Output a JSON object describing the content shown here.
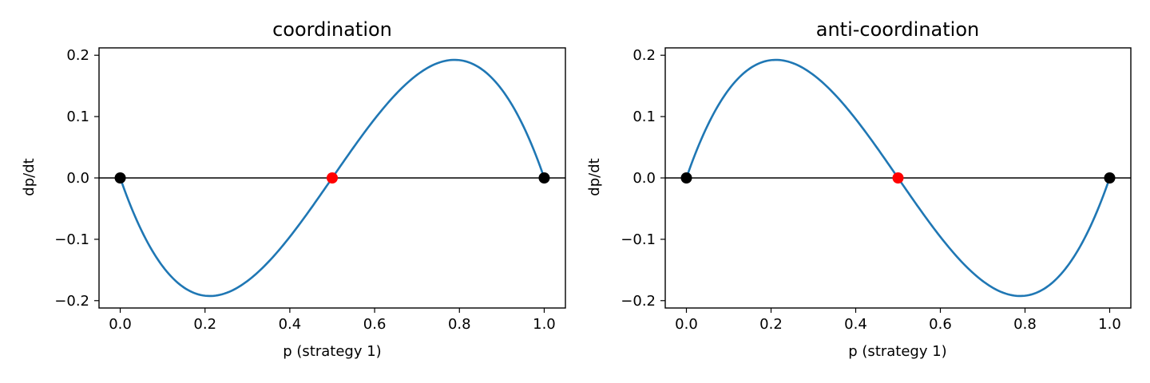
{
  "chart_data": [
    {
      "type": "line",
      "title": "coordination",
      "xlabel": "p (strategy 1)",
      "ylabel": "dp/dt",
      "xlim": [
        -0.05,
        1.05
      ],
      "ylim": [
        -0.212,
        0.212
      ],
      "xticks": [
        0.0,
        0.2,
        0.4,
        0.6,
        0.8,
        1.0
      ],
      "xtick_labels": [
        "0.0",
        "0.2",
        "0.4",
        "0.6",
        "0.8",
        "1.0"
      ],
      "yticks": [
        -0.2,
        -0.1,
        0.0,
        0.1,
        0.2
      ],
      "ytick_labels": [
        "−0.2",
        "−0.1",
        "0.0",
        "0.1",
        "0.2"
      ],
      "curve": {
        "formula": "dp/dt = 2 p (1 - p) (2p - 1)",
        "x": [
          0.0,
          0.05,
          0.1,
          0.15,
          0.2,
          0.25,
          0.3,
          0.35,
          0.4,
          0.45,
          0.5,
          0.55,
          0.6,
          0.65,
          0.7,
          0.75,
          0.8,
          0.85,
          0.9,
          0.95,
          1.0
        ],
        "y": [
          0.0,
          -0.0855,
          -0.144,
          -0.1785,
          -0.192,
          -0.1875,
          -0.168,
          -0.1365,
          -0.096,
          -0.0495,
          0.0,
          0.0495,
          0.096,
          0.1365,
          0.168,
          0.1875,
          0.192,
          0.1785,
          0.144,
          0.0855,
          0.0
        ]
      },
      "zero_line": 0.0,
      "fixed_points": [
        {
          "x": 0.0,
          "y": 0.0,
          "color": "#000000"
        },
        {
          "x": 0.5,
          "y": 0.0,
          "color": "#ff0000"
        },
        {
          "x": 1.0,
          "y": 0.0,
          "color": "#000000"
        }
      ],
      "line_color": "#1f77b4"
    },
    {
      "type": "line",
      "title": "anti-coordination",
      "xlabel": "p (strategy 1)",
      "ylabel": "dp/dt",
      "xlim": [
        -0.05,
        1.05
      ],
      "ylim": [
        -0.212,
        0.212
      ],
      "xticks": [
        0.0,
        0.2,
        0.4,
        0.6,
        0.8,
        1.0
      ],
      "xtick_labels": [
        "0.0",
        "0.2",
        "0.4",
        "0.6",
        "0.8",
        "1.0"
      ],
      "yticks": [
        -0.2,
        -0.1,
        0.0,
        0.1,
        0.2
      ],
      "ytick_labels": [
        "−0.2",
        "−0.1",
        "0.0",
        "0.1",
        "0.2"
      ],
      "curve": {
        "formula": "dp/dt = 2 p (1 - p) (1 - 2p)",
        "x": [
          0.0,
          0.05,
          0.1,
          0.15,
          0.2,
          0.25,
          0.3,
          0.35,
          0.4,
          0.45,
          0.5,
          0.55,
          0.6,
          0.65,
          0.7,
          0.75,
          0.8,
          0.85,
          0.9,
          0.95,
          1.0
        ],
        "y": [
          0.0,
          0.0855,
          0.144,
          0.1785,
          0.192,
          0.1875,
          0.168,
          0.1365,
          0.096,
          0.0495,
          0.0,
          -0.0495,
          -0.096,
          -0.1365,
          -0.168,
          -0.1875,
          -0.192,
          -0.1785,
          -0.144,
          -0.0855,
          0.0
        ]
      },
      "zero_line": 0.0,
      "fixed_points": [
        {
          "x": 0.0,
          "y": 0.0,
          "color": "#000000"
        },
        {
          "x": 0.5,
          "y": 0.0,
          "color": "#ff0000"
        },
        {
          "x": 1.0,
          "y": 0.0,
          "color": "#000000"
        }
      ],
      "line_color": "#1f77b4"
    }
  ]
}
